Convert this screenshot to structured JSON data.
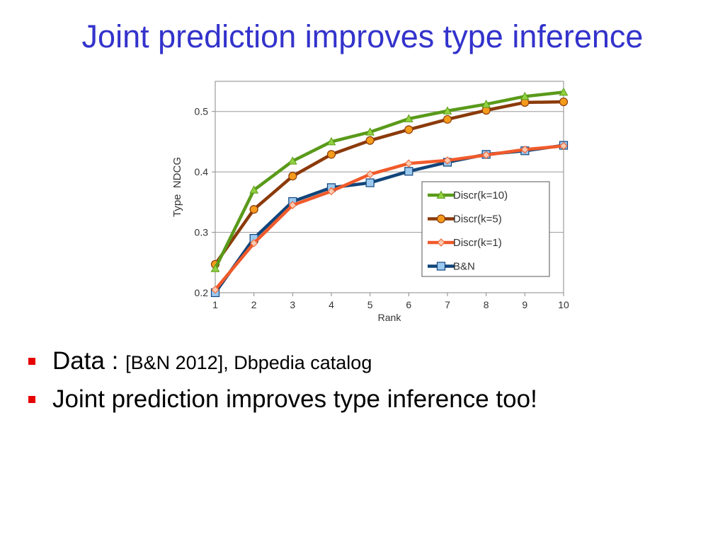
{
  "slide": {
    "title": "Joint prediction improves type inference"
  },
  "bullets": [
    {
      "lead": "Data : ",
      "rest": "[B&N 2012], Dbpedia catalog"
    },
    {
      "lead": "Joint prediction improves type inference too!",
      "rest": ""
    }
  ],
  "colors": {
    "title": "#3333cc",
    "bullet_mark": "#e60000"
  },
  "chart_data": {
    "type": "line",
    "title": "",
    "xlabel": "Rank",
    "ylabel": "Type  NDCG",
    "x": [
      1,
      2,
      3,
      4,
      5,
      6,
      7,
      8,
      9,
      10
    ],
    "xticks": [
      "1",
      "2",
      "3",
      "4",
      "5",
      "6",
      "7",
      "8",
      "9",
      "10"
    ],
    "yticks": [
      "0.2",
      "0.3",
      "0.4",
      "0.5"
    ],
    "ylim": [
      0.2,
      0.55
    ],
    "grid": "horizontal",
    "legend_position": "lower-right",
    "series": [
      {
        "name": "Discr(k=10)",
        "marker": "triangle",
        "color": "#5a9a1a",
        "marker_fill": "#8fd13f",
        "values": [
          0.24,
          0.37,
          0.418,
          0.45,
          0.466,
          0.488,
          0.501,
          0.512,
          0.525,
          0.532
        ]
      },
      {
        "name": "Discr(k=5)",
        "marker": "circle",
        "color": "#8b3a0a",
        "marker_fill": "#f59b1c",
        "values": [
          0.247,
          0.338,
          0.393,
          0.429,
          0.452,
          0.47,
          0.487,
          0.502,
          0.515,
          0.516
        ]
      },
      {
        "name": "Discr(k=1)",
        "marker": "diamond",
        "color": "#f05a2a",
        "marker_fill": "#f9c9b0",
        "values": [
          0.205,
          0.282,
          0.345,
          0.368,
          0.396,
          0.414,
          0.419,
          0.428,
          0.437,
          0.443
        ]
      },
      {
        "name": "B&N",
        "marker": "square",
        "color": "#10457a",
        "marker_fill": "#9cc9f0",
        "values": [
          0.2,
          0.29,
          0.351,
          0.374,
          0.382,
          0.401,
          0.416,
          0.429,
          0.435,
          0.444
        ]
      }
    ]
  }
}
